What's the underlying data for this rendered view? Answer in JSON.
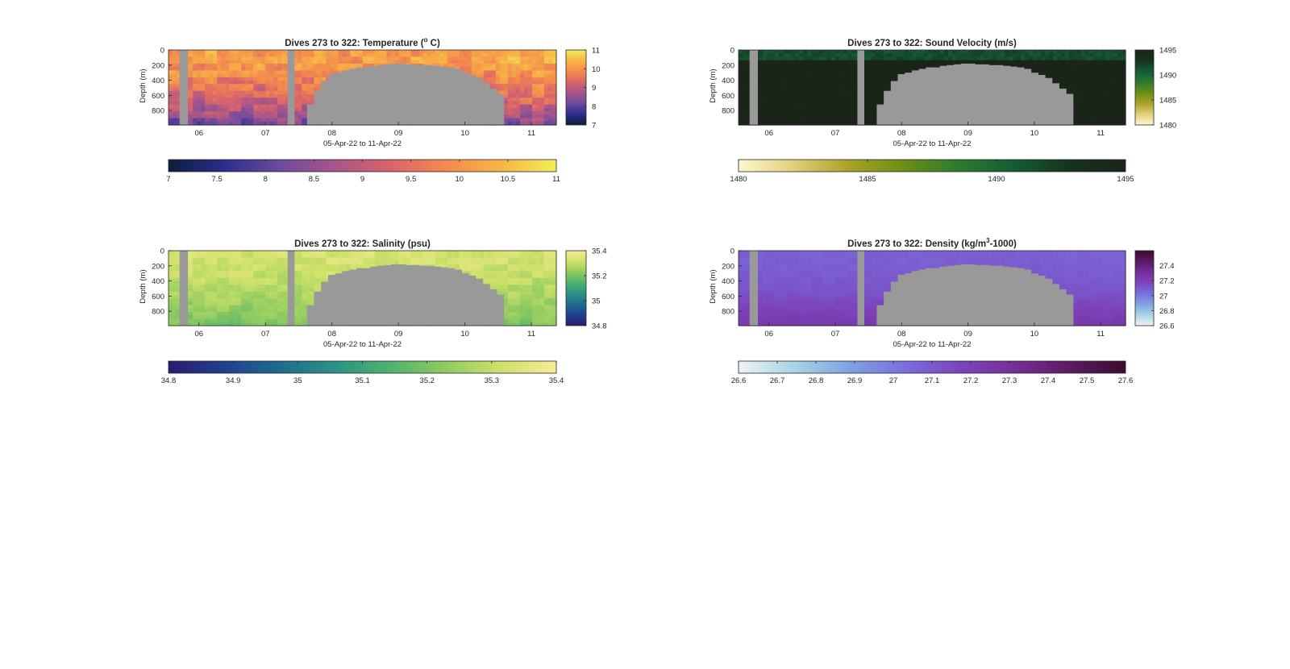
{
  "figure": {
    "background": "#ffffff",
    "missing_color": "#999999",
    "xlabel": "05-Apr-22 to 11-Apr-22",
    "x_ticks": [
      "06",
      "07",
      "08",
      "09",
      "10",
      "11"
    ],
    "x_tick_days": [
      6,
      7,
      8,
      9,
      10,
      11
    ]
  },
  "chart_data": [
    {
      "type": "heatmap",
      "title": "Dives 273 to 322: Temperature (",
      "title_sup": "o",
      "title_tail": " C)",
      "xlabel": "05-Apr-22 to 11-Apr-22",
      "ylabel": "Depth (m)",
      "xlim": [
        "2022-04-05 13:00",
        "2022-04-11 09:00"
      ],
      "ylim": [
        0,
        990
      ],
      "y_ticks": [
        "0",
        "200",
        "400",
        "600",
        "800"
      ],
      "y_tick_values": [
        0,
        200,
        400,
        600,
        800
      ],
      "x_ticks": [
        "06",
        "07",
        "08",
        "09",
        "10",
        "11"
      ],
      "colorbar": {
        "limits": [
          7,
          11
        ],
        "ticks": [
          "7",
          "8",
          "9",
          "10",
          "11"
        ],
        "tick_values": [
          7,
          8,
          9,
          10,
          11
        ],
        "colors": [
          "#0b1e3a",
          "#2b2d8e",
          "#6c4a9e",
          "#a8558b",
          "#d8646b",
          "#f48a4e",
          "#f7b546",
          "#f2ee5a"
        ]
      },
      "h_colorbar": {
        "ticks": [
          "7",
          "7.5",
          "8",
          "8.5",
          "9",
          "9.5",
          "10",
          "10.5",
          "11"
        ],
        "tick_values": [
          7,
          7.5,
          8,
          8.5,
          9,
          9.5,
          10,
          10.5,
          11
        ],
        "colors": [
          "#0b1e3a",
          "#2b2d8e",
          "#6c4a9e",
          "#a8558b",
          "#d8646b",
          "#f48a4e",
          "#f7b546",
          "#f2ee5a"
        ]
      },
      "surface_value": 10.1,
      "deep_value": 8.1,
      "profile_pattern": "warm_top_cool_bottom"
    },
    {
      "type": "heatmap",
      "title": "Dives 273 to 322: Sound Velocity (m/s)",
      "title_sup": "",
      "title_tail": "",
      "xlabel": "05-Apr-22 to 11-Apr-22",
      "ylabel": "Depth (m)",
      "xlim": [
        "2022-04-05 13:00",
        "2022-04-11 09:00"
      ],
      "ylim": [
        0,
        990
      ],
      "y_ticks": [
        "0",
        "200",
        "400",
        "600",
        "800"
      ],
      "y_tick_values": [
        0,
        200,
        400,
        600,
        800
      ],
      "x_ticks": [
        "06",
        "07",
        "08",
        "09",
        "10",
        "11"
      ],
      "colorbar": {
        "limits": [
          1480,
          1495
        ],
        "ticks": [
          "1480",
          "1485",
          "1490",
          "1495"
        ],
        "tick_values": [
          1480,
          1485,
          1490,
          1495
        ],
        "colors": [
          "#fdf7d0",
          "#e2cf7a",
          "#aaa226",
          "#6a8e14",
          "#2b7a31",
          "#145c35",
          "#17321f",
          "#1a2418"
        ]
      },
      "h_colorbar": {
        "ticks": [
          "1480",
          "1485",
          "1490",
          "1495"
        ],
        "tick_values": [
          1480,
          1485,
          1490,
          1495
        ],
        "colors": [
          "#fdf7d0",
          "#e2cf7a",
          "#aaa226",
          "#6a8e14",
          "#2b7a31",
          "#145c35",
          "#17321f",
          "#1a2418"
        ]
      },
      "surface_value": 1491.5,
      "deep_value": 1495,
      "profile_pattern": "surface_band"
    },
    {
      "type": "heatmap",
      "title": "Dives 273 to 322: Salinity (psu)",
      "title_sup": "",
      "title_tail": "",
      "xlabel": "05-Apr-22 to 11-Apr-22",
      "ylabel": "Depth (m)",
      "xlim": [
        "2022-04-05 13:00",
        "2022-04-11 09:00"
      ],
      "ylim": [
        0,
        990
      ],
      "y_ticks": [
        "0",
        "200",
        "400",
        "600",
        "800"
      ],
      "y_tick_values": [
        0,
        200,
        400,
        600,
        800
      ],
      "x_ticks": [
        "06",
        "07",
        "08",
        "09",
        "10",
        "11"
      ],
      "colorbar": {
        "limits": [
          34.8,
          35.4
        ],
        "ticks": [
          "34.8",
          "35",
          "35.2",
          "35.4"
        ],
        "tick_values": [
          34.8,
          35.0,
          35.2,
          35.4
        ],
        "colors": [
          "#2a1c6e",
          "#213f8f",
          "#1e6b8e",
          "#2a9287",
          "#4fb26f",
          "#8fcb60",
          "#cfe16a",
          "#f6eb96"
        ]
      },
      "h_colorbar": {
        "ticks": [
          "34.8",
          "34.9",
          "35",
          "35.1",
          "35.2",
          "35.3",
          "35.4"
        ],
        "tick_values": [
          34.8,
          34.9,
          35.0,
          35.1,
          35.2,
          35.3,
          35.4
        ],
        "colors": [
          "#2a1c6e",
          "#213f8f",
          "#1e6b8e",
          "#2a9287",
          "#4fb26f",
          "#8fcb60",
          "#cfe16a",
          "#f6eb96"
        ]
      },
      "surface_value": 35.33,
      "deep_value": 35.2,
      "profile_pattern": "salty_top"
    },
    {
      "type": "heatmap",
      "title": "Dives 273 to 322: Density (kg/m",
      "title_sup": "3",
      "title_tail": "-1000)",
      "xlabel": "05-Apr-22 to 11-Apr-22",
      "ylabel": "Depth (m)",
      "xlim": [
        "2022-04-05 13:00",
        "2022-04-11 09:00"
      ],
      "ylim": [
        0,
        990
      ],
      "y_ticks": [
        "0",
        "200",
        "400",
        "600",
        "800"
      ],
      "y_tick_values": [
        0,
        200,
        400,
        600,
        800
      ],
      "x_ticks": [
        "06",
        "07",
        "08",
        "09",
        "10",
        "11"
      ],
      "colorbar": {
        "limits": [
          26.6,
          27.6
        ],
        "ticks": [
          "26.6",
          "26.8",
          "27",
          "27.2",
          "27.4"
        ],
        "tick_values": [
          26.6,
          26.8,
          27.0,
          27.2,
          27.4
        ],
        "colors": [
          "#eef3f4",
          "#a9d3e6",
          "#7ea3e3",
          "#7a6fdd",
          "#7c44bc",
          "#772e97",
          "#5c1a63",
          "#3a0d2d"
        ]
      },
      "h_colorbar": {
        "ticks": [
          "26.6",
          "26.7",
          "26.8",
          "26.9",
          "27",
          "27.1",
          "27.2",
          "27.3",
          "27.4",
          "27.5",
          "27.6"
        ],
        "tick_values": [
          26.6,
          26.7,
          26.8,
          26.9,
          27.0,
          27.1,
          27.2,
          27.3,
          27.4,
          27.5,
          27.6
        ],
        "colors": [
          "#eef3f4",
          "#a9d3e6",
          "#7ea3e3",
          "#7a6fdd",
          "#7c44bc",
          "#772e97",
          "#5c1a63",
          "#3a0d2d"
        ]
      },
      "surface_value": 27.08,
      "deep_value": 27.25,
      "profile_pattern": "dense_bottom"
    }
  ],
  "data_gaps": [
    {
      "start": "2022-04-05 17:00",
      "end": "2022-04-05 20:00",
      "depth_top": 0
    },
    {
      "start": "2022-04-07 08:00",
      "end": "2022-04-07 10:30",
      "depth_top": 0
    }
  ],
  "shallow_segment": {
    "start": "2022-04-07 15:00",
    "end": "2022-04-10 14:00",
    "max_depths": [
      720,
      540,
      410,
      320,
      300,
      270,
      250,
      230,
      230,
      210,
      200,
      190,
      180,
      180,
      190,
      190,
      200,
      200,
      210,
      220,
      230,
      250,
      300,
      330,
      370,
      440,
      510,
      580
    ]
  }
}
